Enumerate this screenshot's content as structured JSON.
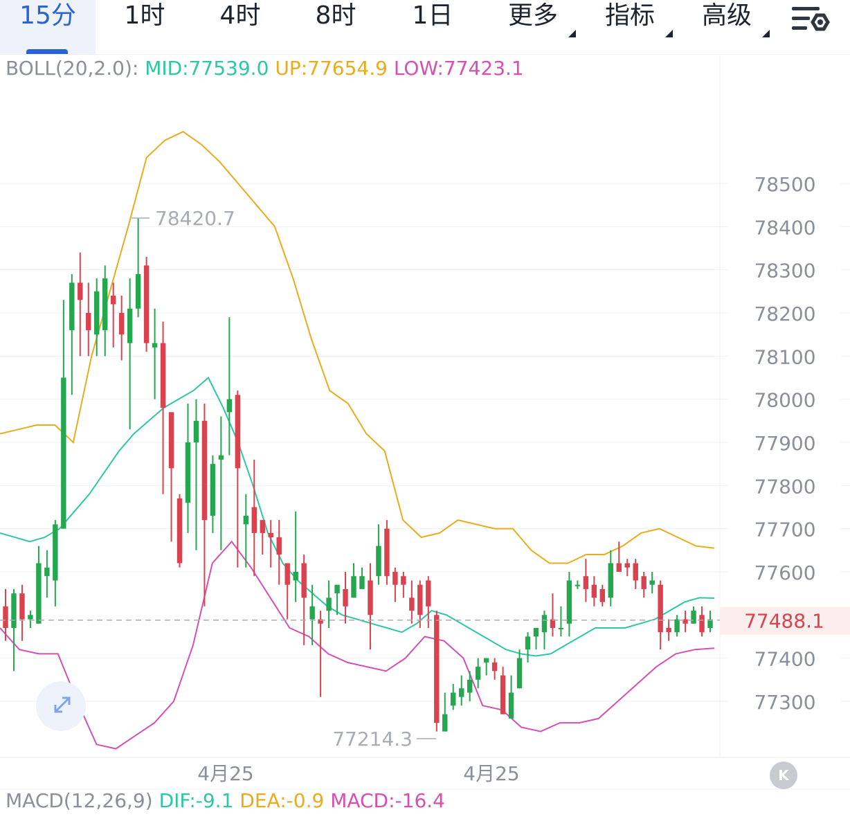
{
  "tabs": [
    {
      "label": "15分",
      "active": true
    },
    {
      "label": "1时",
      "active": false
    },
    {
      "label": "4时",
      "active": false
    },
    {
      "label": "8时",
      "active": false
    },
    {
      "label": "1日",
      "active": false
    },
    {
      "label": "更多",
      "active": false,
      "dropdown": true
    },
    {
      "label": "指标",
      "active": false,
      "dropdown": true
    },
    {
      "label": "高级",
      "active": false,
      "dropdown": true
    }
  ],
  "settings_icon": "chart-settings-icon",
  "boll_legend": {
    "name": "BOLL(20,2.0):",
    "mid": "MID:77539.0",
    "up": "UP:77654.9",
    "low": "LOW:77423.1"
  },
  "macd_legend": {
    "name": "MACD(12,26,9)",
    "dif": "DIF:-9.1",
    "dea": "DEA:-0.9",
    "macd": "MACD:-16.4"
  },
  "current_price_label": "77488.1",
  "max_label": "78420.7",
  "min_label": "77214.3",
  "x_labels": [
    "4月25",
    "4月25"
  ],
  "k_button_label": "K",
  "colors": {
    "up": "#25a750",
    "down": "#d9434f",
    "mid": "#2ec7a4",
    "upper": "#e8ac1c",
    "lower": "#d64fb2",
    "grid": "#eef0f2",
    "axis_text": "#8a8f99"
  },
  "chart_data": {
    "type": "candlestick",
    "y_ticks": [
      78500,
      78400,
      78300,
      78200,
      78100,
      78000,
      77900,
      77800,
      77700,
      77600,
      77400,
      77300
    ],
    "ylim": [
      77180,
      78650
    ],
    "current_price": 77488.1,
    "candles": [
      [
        77520,
        77470,
        77560,
        77440
      ],
      [
        77470,
        77550,
        77560,
        77370
      ],
      [
        77550,
        77490,
        77570,
        77440
      ],
      [
        77490,
        77500,
        77510,
        77470
      ],
      [
        77480,
        77620,
        77660,
        77480
      ],
      [
        77590,
        77610,
        77650,
        77540
      ],
      [
        77580,
        77710,
        77720,
        77520
      ],
      [
        77700,
        78050,
        78230,
        77700
      ],
      [
        78160,
        78270,
        78290,
        78010
      ],
      [
        78270,
        78230,
        78340,
        78100
      ],
      [
        78200,
        78160,
        78270,
        78100
      ],
      [
        78150,
        78250,
        78280,
        78100
      ],
      [
        78160,
        78280,
        78310,
        78100
      ],
      [
        78240,
        78220,
        78270,
        78120
      ],
      [
        78200,
        78150,
        78240,
        78090
      ],
      [
        78130,
        78210,
        78280,
        77930
      ],
      [
        78210,
        78290,
        78420,
        78190
      ],
      [
        78310,
        78130,
        78330,
        78110
      ],
      [
        78120,
        78130,
        78210,
        78000
      ],
      [
        78130,
        77980,
        78180,
        77780
      ],
      [
        77970,
        77840,
        77970,
        77670
      ],
      [
        77770,
        77620,
        77780,
        77610
      ],
      [
        77760,
        77900,
        77990,
        77690
      ],
      [
        77900,
        77950,
        78000,
        77650
      ],
      [
        77950,
        77720,
        77990,
        77520
      ],
      [
        77730,
        77850,
        77870,
        77690
      ],
      [
        77860,
        77870,
        77960,
        77650
      ],
      [
        77970,
        78000,
        78190,
        77870
      ],
      [
        78010,
        77840,
        78020,
        77610
      ],
      [
        77710,
        77730,
        77780,
        77610
      ],
      [
        77750,
        77690,
        77860,
        77590
      ],
      [
        77720,
        77690,
        77720,
        77640
      ],
      [
        77690,
        77680,
        77720,
        77610
      ],
      [
        77680,
        77640,
        77720,
        77570
      ],
      [
        77620,
        77570,
        77620,
        77490
      ],
      [
        77580,
        77600,
        77740,
        77530
      ],
      [
        77620,
        77540,
        77640,
        77430
      ],
      [
        77490,
        77520,
        77570,
        77430
      ],
      [
        77490,
        77480,
        77510,
        77310
      ],
      [
        77510,
        77540,
        77580,
        77470
      ],
      [
        77550,
        77570,
        77570,
        77500
      ],
      [
        77560,
        77520,
        77600,
        77480
      ],
      [
        77540,
        77590,
        77620,
        77540
      ],
      [
        77560,
        77590,
        77610,
        77570
      ],
      [
        77580,
        77500,
        77620,
        77420
      ],
      [
        77590,
        77660,
        77710,
        77570
      ],
      [
        77700,
        77590,
        77720,
        77570
      ],
      [
        77600,
        77570,
        77610,
        77530
      ],
      [
        77590,
        77570,
        77600,
        77540
      ],
      [
        77540,
        77510,
        77580,
        77480
      ],
      [
        77570,
        77500,
        77580,
        77470
      ],
      [
        77580,
        77520,
        77590,
        77470
      ],
      [
        77500,
        77250,
        77510,
        77230
      ],
      [
        77230,
        77270,
        77320,
        77230
      ],
      [
        77290,
        77320,
        77340,
        77280
      ],
      [
        77310,
        77330,
        77360,
        77290
      ],
      [
        77320,
        77350,
        77370,
        77300
      ],
      [
        77350,
        77380,
        77400,
        77330
      ],
      [
        77390,
        77400,
        77400,
        77360
      ],
      [
        77390,
        77370,
        77400,
        77350
      ],
      [
        77360,
        77270,
        77380,
        77270
      ],
      [
        77260,
        77320,
        77360,
        77260
      ],
      [
        77330,
        77400,
        77420,
        77330
      ],
      [
        77420,
        77450,
        77460,
        77390
      ],
      [
        77450,
        77470,
        77470,
        77420
      ],
      [
        77460,
        77500,
        77510,
        77420
      ],
      [
        77490,
        77470,
        77550,
        77450
      ],
      [
        77470,
        77470,
        77520,
        77450
      ],
      [
        77480,
        77580,
        77600,
        77450
      ],
      [
        77570,
        77570,
        77580,
        77560
      ],
      [
        77590,
        77560,
        77630,
        77530
      ],
      [
        77570,
        77540,
        77590,
        77520
      ],
      [
        77560,
        77530,
        77570,
        77520
      ],
      [
        77540,
        77620,
        77650,
        77520
      ],
      [
        77620,
        77600,
        77670,
        77600
      ],
      [
        77620,
        77610,
        77630,
        77590
      ],
      [
        77620,
        77580,
        77630,
        77560
      ],
      [
        77590,
        77560,
        77600,
        77540
      ],
      [
        77570,
        77580,
        77600,
        77550
      ],
      [
        77570,
        77460,
        77580,
        77420
      ],
      [
        77470,
        77460,
        77490,
        77440
      ],
      [
        77460,
        77490,
        77500,
        77450
      ],
      [
        77490,
        77480,
        77510,
        77460
      ],
      [
        77480,
        77510,
        77520,
        77480
      ],
      [
        77500,
        77460,
        77520,
        77450
      ],
      [
        77470,
        77490,
        77510,
        77460
      ]
    ],
    "boll_mid": [
      77690,
      77680,
      77670,
      77680,
      77700,
      77740,
      77780,
      77830,
      77880,
      77920,
      77950,
      77980,
      78000,
      78020,
      78050,
      77980,
      77900,
      77800,
      77690,
      77620,
      77580,
      77550,
      77520,
      77500,
      77490,
      77480,
      77470,
      77460,
      77480,
      77510,
      77500,
      77480,
      77460,
      77440,
      77420,
      77410,
      77405,
      77410,
      77430,
      77450,
      77470,
      77470,
      77470,
      77480,
      77490,
      77510,
      77530,
      77540,
      77539
    ],
    "boll_up": [
      77920,
      77930,
      77940,
      77940,
      77900,
      78100,
      78250,
      78400,
      78560,
      78600,
      78620,
      78590,
      78550,
      78500,
      78450,
      78400,
      78280,
      78140,
      78020,
      77990,
      77920,
      77880,
      77720,
      77680,
      77690,
      77720,
      77710,
      77700,
      77700,
      77650,
      77620,
      77620,
      77640,
      77640,
      77660,
      77690,
      77700,
      77680,
      77660,
      77655
    ],
    "boll_low": [
      77470,
      77420,
      77410,
      77410,
      77300,
      77200,
      77190,
      77220,
      77250,
      77300,
      77430,
      77620,
      77670,
      77610,
      77540,
      77470,
      77450,
      77410,
      77390,
      77380,
      77370,
      77400,
      77450,
      77440,
      77400,
      77290,
      77280,
      77240,
      77230,
      77250,
      77250,
      77260,
      77300,
      77340,
      77380,
      77410,
      77420,
      77423
    ]
  }
}
